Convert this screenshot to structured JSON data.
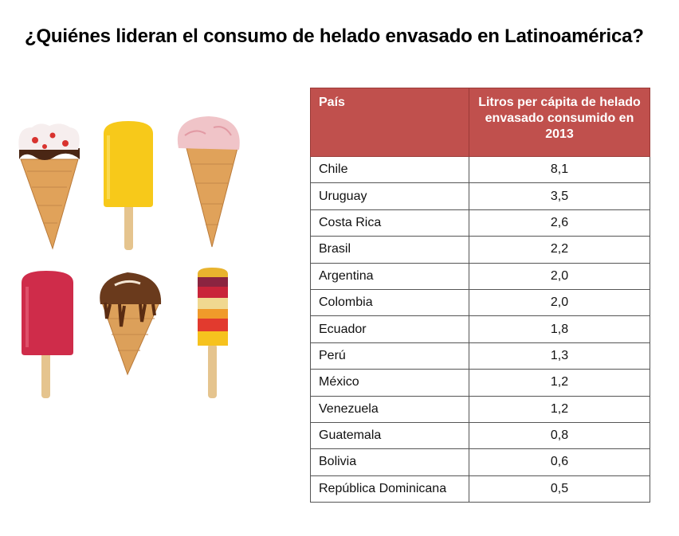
{
  "title": "¿Quiénes lideran el consumo de helado envasado en Latinoamérica?",
  "chart_data": {
    "type": "table",
    "columns": [
      "País",
      "Litros per cápita de helado envasado consumido en 2013"
    ],
    "rows": [
      {
        "country": "Chile",
        "value": "8,1"
      },
      {
        "country": "Uruguay",
        "value": "3,5"
      },
      {
        "country": "Costa Rica",
        "value": "2,6"
      },
      {
        "country": "Brasil",
        "value": "2,2"
      },
      {
        "country": "Argentina",
        "value": "2,0"
      },
      {
        "country": "Colombia",
        "value": "2,0"
      },
      {
        "country": "Ecuador",
        "value": "1,8"
      },
      {
        "country": "Perú",
        "value": "1,3"
      },
      {
        "country": "México",
        "value": "1,2"
      },
      {
        "country": "Venezuela",
        "value": "1,2"
      },
      {
        "country": "Guatemala",
        "value": "0,8"
      },
      {
        "country": "Bolivia",
        "value": "0,6"
      },
      {
        "country": "República Dominicana",
        "value": "0,5"
      }
    ]
  },
  "colors": {
    "header_fill": "#c0504d",
    "header_text": "#ffffff"
  },
  "illustrations": [
    "ice-cream-cone-icon",
    "yellow-popsicle-icon",
    "pink-ice-cream-cone-icon",
    "red-popsicle-icon",
    "chocolate-cone-icon",
    "striped-popsicle-icon"
  ]
}
